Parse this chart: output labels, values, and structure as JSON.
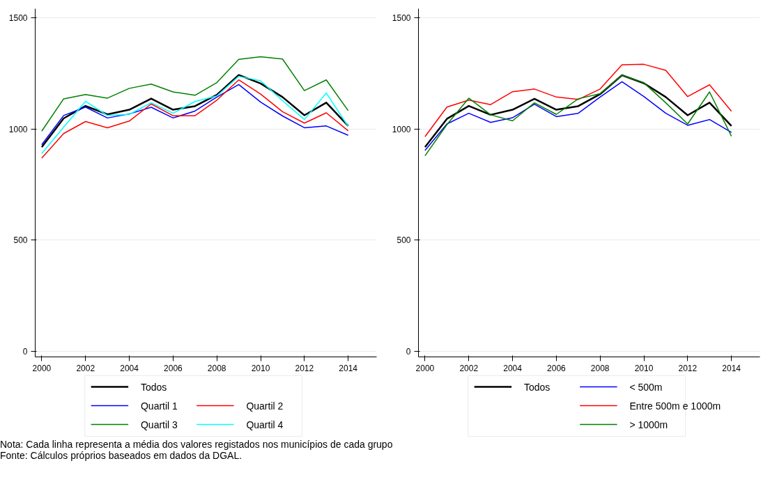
{
  "chart_data": [
    {
      "type": "line",
      "x": [
        2000,
        2001,
        2002,
        2003,
        2004,
        2005,
        2006,
        2007,
        2008,
        2009,
        2010,
        2011,
        2012,
        2013,
        2014
      ],
      "xlim": [
        1999.7,
        2015.3
      ],
      "xticks": [
        2000,
        2002,
        2004,
        2006,
        2008,
        2010,
        2012,
        2014
      ],
      "ylim": [
        -25,
        1540
      ],
      "yticks": [
        0,
        500,
        1000,
        1500
      ],
      "grid": "y",
      "legend": "bottom",
      "line_style": "solid",
      "marker": "none",
      "series": [
        {
          "name": "Todos",
          "color": "#000000",
          "values": [
            918,
            1047,
            1103,
            1065,
            1086,
            1136,
            1086,
            1102,
            1153,
            1242,
            1204,
            1143,
            1061,
            1118,
            1013
          ]
        },
        {
          "name": "Quartil 1",
          "color": "#0000ff",
          "values": [
            929,
            1060,
            1098,
            1049,
            1067,
            1097,
            1049,
            1080,
            1143,
            1199,
            1120,
            1058,
            1005,
            1013,
            971
          ]
        },
        {
          "name": "Quartil 2",
          "color": "#ff0000",
          "values": [
            869,
            979,
            1033,
            1005,
            1035,
            1112,
            1059,
            1059,
            1129,
            1220,
            1156,
            1077,
            1026,
            1072,
            991
          ]
        },
        {
          "name": "Quartil 3",
          "color": "#008000",
          "values": [
            990,
            1135,
            1154,
            1138,
            1182,
            1201,
            1166,
            1151,
            1208,
            1312,
            1324,
            1314,
            1172,
            1220,
            1082
          ]
        },
        {
          "name": "Quartil 4",
          "color": "#00ffff",
          "values": [
            889,
            1008,
            1124,
            1060,
            1065,
            1117,
            1070,
            1123,
            1148,
            1236,
            1216,
            1127,
            1042,
            1161,
            1011
          ]
        }
      ]
    },
    {
      "type": "line",
      "x": [
        2000,
        2001,
        2002,
        2003,
        2004,
        2005,
        2006,
        2007,
        2008,
        2009,
        2010,
        2011,
        2012,
        2013,
        2014
      ],
      "xlim": [
        1999.7,
        2015.3
      ],
      "xticks": [
        2000,
        2002,
        2004,
        2006,
        2008,
        2010,
        2012,
        2014
      ],
      "ylim": [
        -25,
        1540
      ],
      "yticks": [
        0,
        500,
        1000,
        1500
      ],
      "grid": "y",
      "legend": "bottom",
      "line_style": "solid",
      "marker": "none",
      "annotations": [
        "Nota: Cada linha representa a média dos valores registados nos municípios de cada grupo",
        "Fonte: Cálculos próprios baseados em dados da DGAL."
      ],
      "series": [
        {
          "name": "Todos",
          "color": "#000000",
          "values": [
            918,
            1045,
            1103,
            1063,
            1086,
            1135,
            1086,
            1102,
            1156,
            1241,
            1205,
            1143,
            1061,
            1118,
            1013
          ]
        },
        {
          "name": "< 500m",
          "color": "#0000ff",
          "values": [
            903,
            1022,
            1070,
            1029,
            1050,
            1111,
            1055,
            1070,
            1143,
            1212,
            1145,
            1070,
            1016,
            1042,
            984
          ]
        },
        {
          "name": "Entre 500m e 1000m",
          "color": "#ff0000",
          "values": [
            965,
            1098,
            1129,
            1109,
            1167,
            1179,
            1143,
            1132,
            1179,
            1288,
            1290,
            1263,
            1145,
            1198,
            1079
          ]
        },
        {
          "name": "> 1000m",
          "color": "#008000",
          "values": [
            879,
            1019,
            1138,
            1063,
            1036,
            1117,
            1065,
            1135,
            1158,
            1241,
            1207,
            1117,
            1022,
            1166,
            967
          ]
        }
      ]
    }
  ]
}
